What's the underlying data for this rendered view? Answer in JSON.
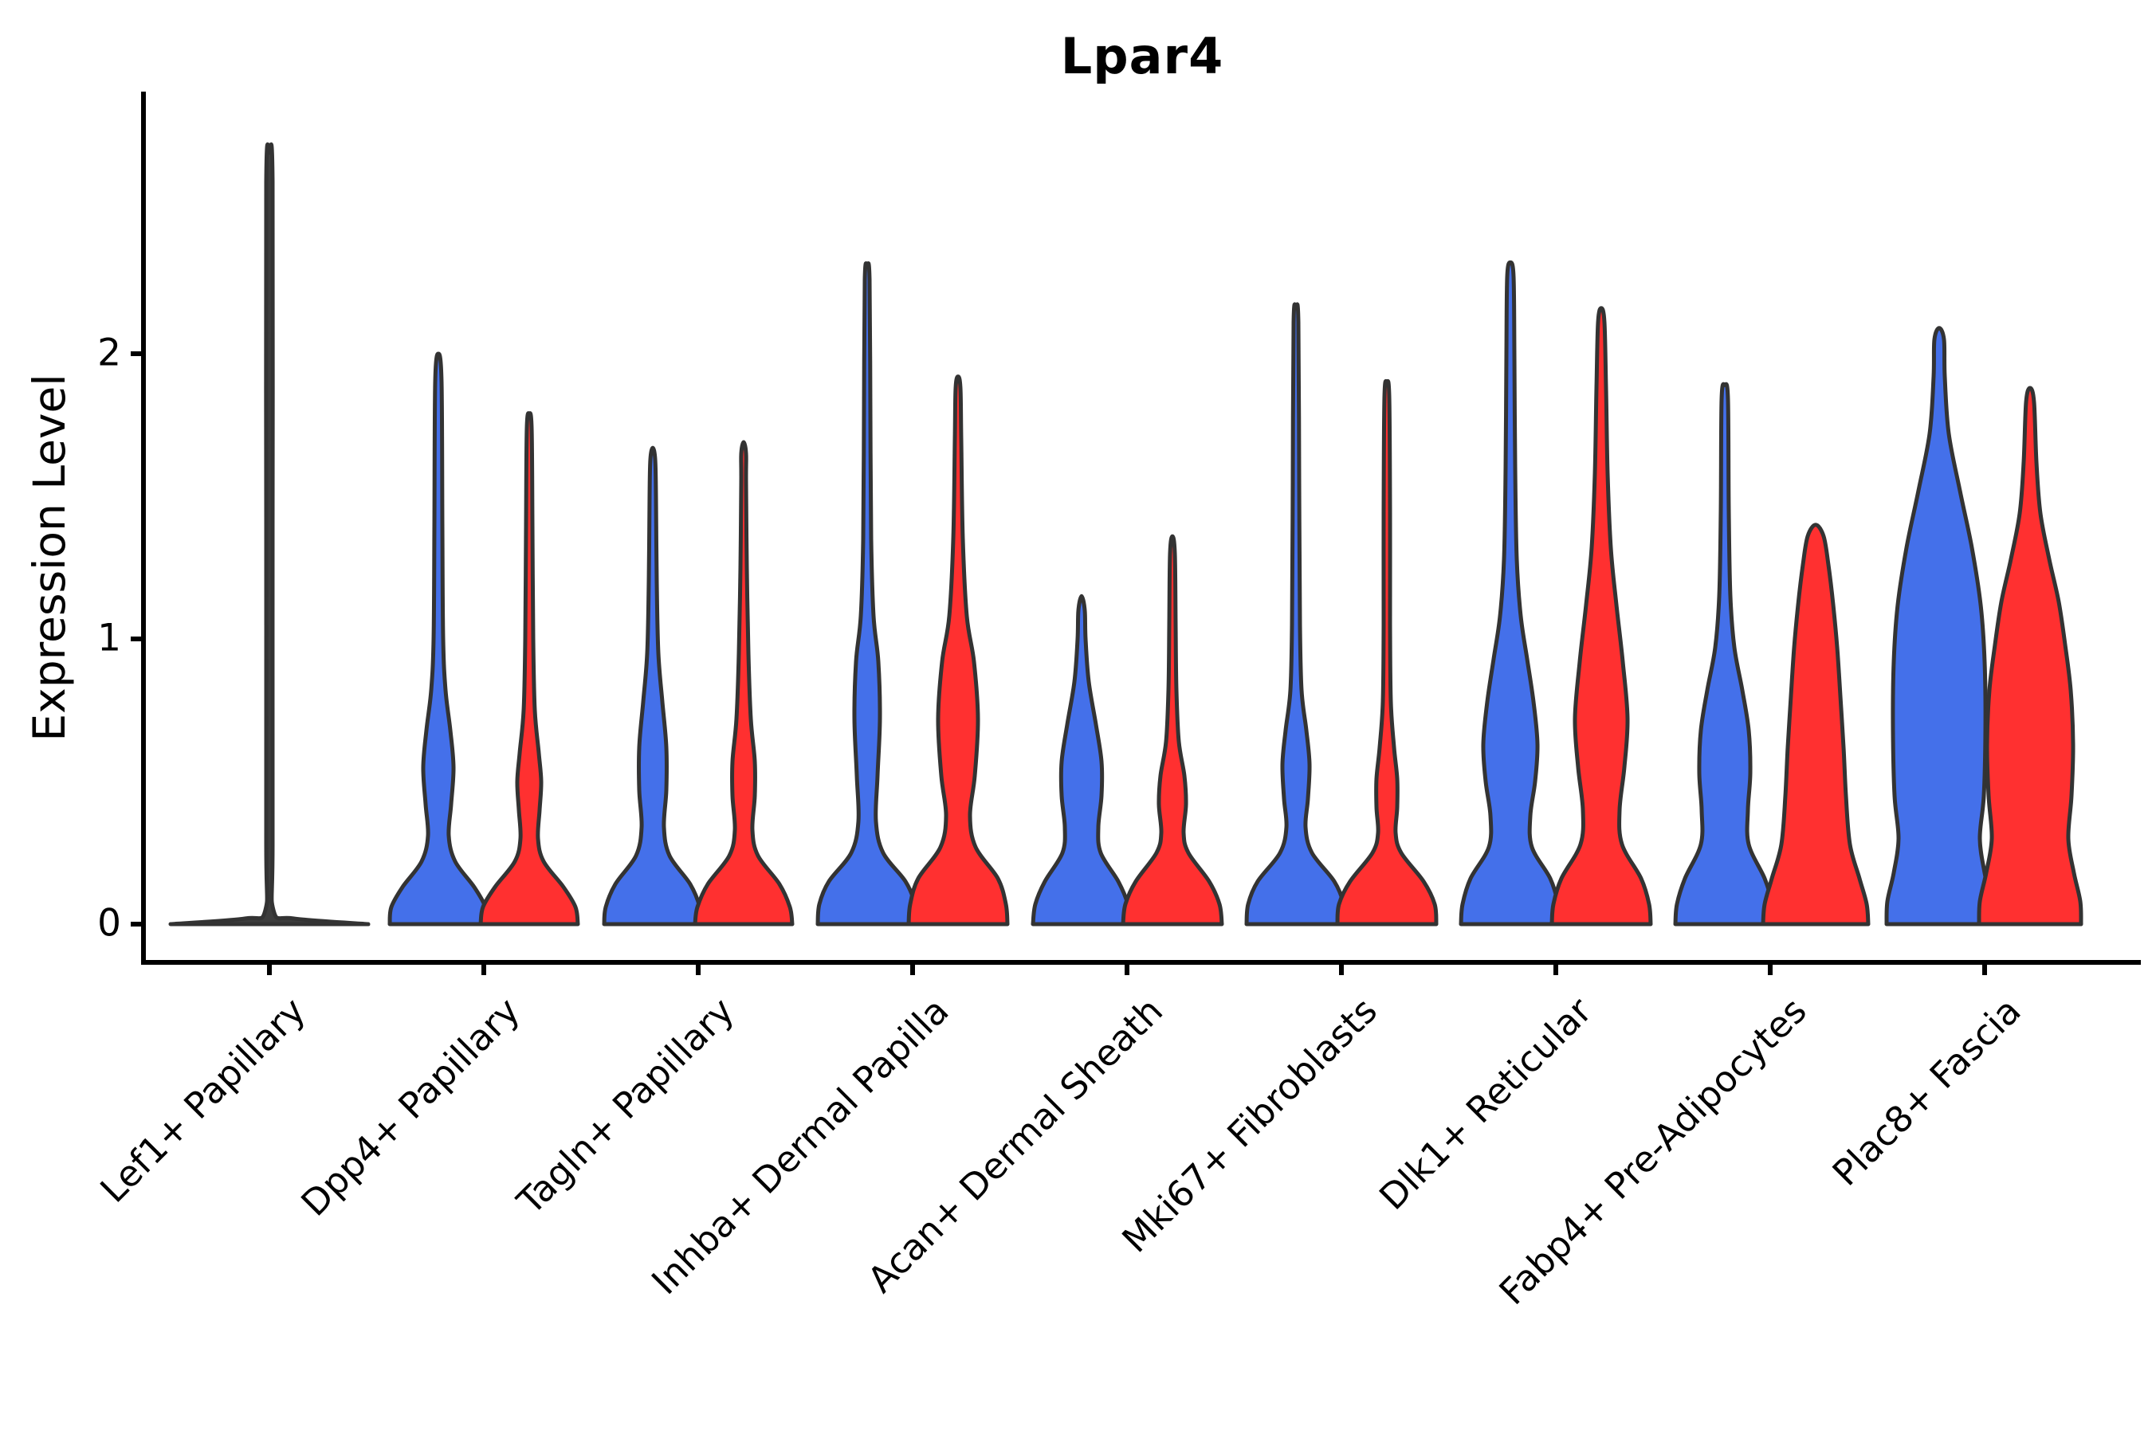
{
  "chart_data": {
    "type": "violin",
    "title": "Lpar4",
    "xlabel": "",
    "ylabel": "Expression Level",
    "ylim": [
      0,
      2.75
    ],
    "yticks": [
      "0",
      "1",
      "2"
    ],
    "ytick_values": [
      0,
      1,
      2
    ],
    "grid": false,
    "legend_position": "none",
    "x_tick_label_rotation_deg": 45,
    "outline_color": "#333333",
    "single_violin_fill": "#3d3d3d",
    "group_colors": {
      "left_violin": "#4470EA",
      "right_violin": "#FF3030"
    },
    "categories": [
      "Lef1+ Papillary",
      "Dpp4+ Papillary",
      "Tagln+ Papillary",
      "Inhba+ Dermal Papilla",
      "Acan+ Dermal Sheath",
      "Mki67+ Fibroblasts",
      "Dlk1+ Reticular",
      "Fabp4+ Pre-Adipocytes",
      "Plac8+ Fascia"
    ],
    "series_maxima": [
      {
        "name": "blue-group",
        "max_expression": [
          2.71,
          2.0,
          1.67,
          2.31,
          1.15,
          2.16,
          2.32,
          1.89,
          2.09
        ]
      },
      {
        "name": "red-group",
        "max_expression": [
          null,
          1.79,
          1.69,
          1.92,
          1.36,
          1.9,
          2.16,
          1.4,
          1.88
        ]
      }
    ],
    "violins": [
      {
        "category_index": 0,
        "side": "single",
        "max": 2.71,
        "profile": [
          [
            0,
            124
          ],
          [
            0.02,
            30
          ],
          [
            0.05,
            5
          ],
          [
            0.3,
            4
          ],
          [
            1.4,
            4
          ],
          [
            2.6,
            4
          ],
          [
            2.705,
            0
          ]
        ]
      },
      {
        "category_index": 1,
        "side": "left",
        "max": 2.0,
        "profile": [
          [
            0,
            61
          ],
          [
            0.06,
            59
          ],
          [
            0.13,
            45
          ],
          [
            0.22,
            21
          ],
          [
            0.31,
            13
          ],
          [
            0.42,
            16
          ],
          [
            0.55,
            19
          ],
          [
            0.68,
            15
          ],
          [
            0.82,
            9
          ],
          [
            1.0,
            6
          ],
          [
            1.4,
            5
          ],
          [
            1.9,
            4
          ],
          [
            2.0,
            0
          ]
        ]
      },
      {
        "category_index": 1,
        "side": "right",
        "max": 1.79,
        "profile": [
          [
            0,
            61
          ],
          [
            0.06,
            58
          ],
          [
            0.13,
            43
          ],
          [
            0.22,
            18
          ],
          [
            0.3,
            11
          ],
          [
            0.4,
            13
          ],
          [
            0.5,
            15
          ],
          [
            0.6,
            12
          ],
          [
            0.75,
            7
          ],
          [
            1.0,
            5
          ],
          [
            1.4,
            4
          ],
          [
            1.74,
            3
          ],
          [
            1.79,
            0
          ]
        ]
      },
      {
        "category_index": 2,
        "side": "left",
        "max": 1.67,
        "profile": [
          [
            0,
            61
          ],
          [
            0.06,
            59
          ],
          [
            0.14,
            47
          ],
          [
            0.24,
            21
          ],
          [
            0.34,
            14
          ],
          [
            0.47,
            17
          ],
          [
            0.62,
            17
          ],
          [
            0.78,
            12
          ],
          [
            0.95,
            7
          ],
          [
            1.2,
            5
          ],
          [
            1.5,
            4
          ],
          [
            1.63,
            3
          ],
          [
            1.67,
            0
          ]
        ]
      },
      {
        "category_index": 2,
        "side": "right",
        "max": 1.69,
        "profile": [
          [
            0,
            61
          ],
          [
            0.06,
            58
          ],
          [
            0.14,
            45
          ],
          [
            0.24,
            18
          ],
          [
            0.33,
            11
          ],
          [
            0.45,
            14
          ],
          [
            0.57,
            14
          ],
          [
            0.72,
            9
          ],
          [
            0.95,
            6
          ],
          [
            1.25,
            4
          ],
          [
            1.55,
            3
          ],
          [
            1.65,
            3
          ],
          [
            1.69,
            0
          ]
        ]
      },
      {
        "category_index": 3,
        "side": "left",
        "max": 2.31,
        "profile": [
          [
            0,
            62
          ],
          [
            0.07,
            60
          ],
          [
            0.15,
            48
          ],
          [
            0.25,
            20
          ],
          [
            0.36,
            11
          ],
          [
            0.52,
            13
          ],
          [
            0.72,
            16
          ],
          [
            0.92,
            14
          ],
          [
            1.08,
            8
          ],
          [
            1.35,
            5
          ],
          [
            1.8,
            4
          ],
          [
            2.26,
            3
          ],
          [
            2.31,
            0
          ]
        ]
      },
      {
        "category_index": 3,
        "side": "right",
        "max": 1.92,
        "profile": [
          [
            0,
            62
          ],
          [
            0.07,
            60
          ],
          [
            0.16,
            50
          ],
          [
            0.27,
            22
          ],
          [
            0.38,
            15
          ],
          [
            0.52,
            21
          ],
          [
            0.72,
            25
          ],
          [
            0.92,
            20
          ],
          [
            1.08,
            11
          ],
          [
            1.35,
            6
          ],
          [
            1.7,
            4
          ],
          [
            1.88,
            3
          ],
          [
            1.92,
            0
          ]
        ]
      },
      {
        "category_index": 4,
        "side": "left",
        "max": 1.15,
        "profile": [
          [
            0,
            61
          ],
          [
            0.07,
            58
          ],
          [
            0.15,
            46
          ],
          [
            0.25,
            24
          ],
          [
            0.34,
            21
          ],
          [
            0.45,
            25
          ],
          [
            0.57,
            25
          ],
          [
            0.7,
            18
          ],
          [
            0.85,
            9
          ],
          [
            1.0,
            5
          ],
          [
            1.1,
            4
          ],
          [
            1.15,
            0
          ]
        ]
      },
      {
        "category_index": 4,
        "side": "right",
        "max": 1.36,
        "profile": [
          [
            0,
            62
          ],
          [
            0.07,
            59
          ],
          [
            0.15,
            46
          ],
          [
            0.25,
            20
          ],
          [
            0.32,
            14
          ],
          [
            0.42,
            17
          ],
          [
            0.52,
            15
          ],
          [
            0.64,
            8
          ],
          [
            0.82,
            5
          ],
          [
            1.05,
            4
          ],
          [
            1.3,
            3
          ],
          [
            1.36,
            0
          ]
        ]
      },
      {
        "category_index": 5,
        "side": "left",
        "max": 2.16,
        "profile": [
          [
            0,
            62
          ],
          [
            0.07,
            60
          ],
          [
            0.15,
            48
          ],
          [
            0.25,
            20
          ],
          [
            0.34,
            12
          ],
          [
            0.44,
            15
          ],
          [
            0.56,
            17
          ],
          [
            0.68,
            13
          ],
          [
            0.82,
            7
          ],
          [
            1.05,
            5
          ],
          [
            1.55,
            4
          ],
          [
            2.11,
            3
          ],
          [
            2.16,
            0
          ]
        ]
      },
      {
        "category_index": 5,
        "side": "right",
        "max": 1.9,
        "profile": [
          [
            0,
            62
          ],
          [
            0.07,
            60
          ],
          [
            0.15,
            46
          ],
          [
            0.25,
            18
          ],
          [
            0.32,
            11
          ],
          [
            0.41,
            13
          ],
          [
            0.51,
            13
          ],
          [
            0.62,
            9
          ],
          [
            0.78,
            5
          ],
          [
            1.05,
            4
          ],
          [
            1.45,
            4
          ],
          [
            1.85,
            3
          ],
          [
            1.9,
            0
          ]
        ]
      },
      {
        "category_index": 6,
        "side": "left",
        "max": 2.32,
        "profile": [
          [
            0,
            62
          ],
          [
            0.07,
            60
          ],
          [
            0.16,
            50
          ],
          [
            0.27,
            27
          ],
          [
            0.38,
            25
          ],
          [
            0.5,
            31
          ],
          [
            0.63,
            34
          ],
          [
            0.78,
            29
          ],
          [
            0.93,
            21
          ],
          [
            1.08,
            13
          ],
          [
            1.28,
            8
          ],
          [
            1.6,
            6
          ],
          [
            2.0,
            5
          ],
          [
            2.27,
            4
          ],
          [
            2.32,
            0
          ]
        ]
      },
      {
        "category_index": 6,
        "side": "right",
        "max": 2.16,
        "profile": [
          [
            0,
            62
          ],
          [
            0.07,
            60
          ],
          [
            0.16,
            50
          ],
          [
            0.28,
            26
          ],
          [
            0.4,
            23
          ],
          [
            0.55,
            29
          ],
          [
            0.72,
            33
          ],
          [
            0.92,
            27
          ],
          [
            1.12,
            19
          ],
          [
            1.32,
            12
          ],
          [
            1.58,
            8
          ],
          [
            1.88,
            6
          ],
          [
            2.11,
            4
          ],
          [
            2.16,
            0
          ]
        ]
      },
      {
        "category_index": 7,
        "side": "left",
        "max": 1.89,
        "profile": [
          [
            0,
            62
          ],
          [
            0.07,
            60
          ],
          [
            0.16,
            50
          ],
          [
            0.28,
            30
          ],
          [
            0.4,
            29
          ],
          [
            0.53,
            32
          ],
          [
            0.68,
            30
          ],
          [
            0.82,
            22
          ],
          [
            0.97,
            12
          ],
          [
            1.15,
            7
          ],
          [
            1.45,
            5
          ],
          [
            1.84,
            4
          ],
          [
            1.89,
            0
          ]
        ]
      },
      {
        "category_index": 7,
        "side": "right",
        "max": 1.4,
        "profile": [
          [
            0,
            66
          ],
          [
            0.07,
            64
          ],
          [
            0.16,
            55
          ],
          [
            0.28,
            43
          ],
          [
            0.45,
            38
          ],
          [
            0.62,
            35
          ],
          [
            0.8,
            31
          ],
          [
            0.97,
            27
          ],
          [
            1.12,
            22
          ],
          [
            1.26,
            16
          ],
          [
            1.36,
            10
          ],
          [
            1.4,
            0
          ]
        ]
      },
      {
        "category_index": 8,
        "side": "left",
        "max": 2.09,
        "profile": [
          [
            0,
            66
          ],
          [
            0.08,
            65
          ],
          [
            0.18,
            57
          ],
          [
            0.3,
            51
          ],
          [
            0.45,
            56
          ],
          [
            0.68,
            58
          ],
          [
            0.92,
            57
          ],
          [
            1.12,
            52
          ],
          [
            1.32,
            41
          ],
          [
            1.52,
            26
          ],
          [
            1.72,
            12
          ],
          [
            1.92,
            7
          ],
          [
            2.05,
            6
          ],
          [
            2.09,
            0
          ]
        ]
      },
      {
        "category_index": 8,
        "side": "right",
        "max": 1.88,
        "profile": [
          [
            0,
            64
          ],
          [
            0.08,
            63
          ],
          [
            0.18,
            55
          ],
          [
            0.3,
            48
          ],
          [
            0.45,
            52
          ],
          [
            0.63,
            54
          ],
          [
            0.82,
            51
          ],
          [
            0.98,
            44
          ],
          [
            1.13,
            36
          ],
          [
            1.28,
            24
          ],
          [
            1.44,
            13
          ],
          [
            1.62,
            8
          ],
          [
            1.83,
            5
          ],
          [
            1.88,
            0
          ]
        ]
      }
    ]
  }
}
